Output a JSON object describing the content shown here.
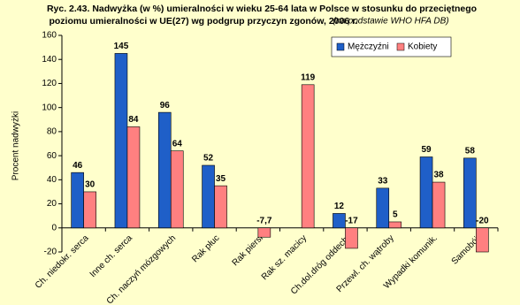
{
  "chart_data": {
    "type": "bar",
    "title_lines": [
      "Ryc. 2.43. Nadwyżka (w %) umieralności w wieku 25-64 lata w Polsce w stosunku do przeciętnego",
      "poziomu umieralności w UE(27) wg podgrup przyczyn zgonów, 2006 r."
    ],
    "source": "(na podstawie WHO HFA DB)",
    "y_label": "Procent nadwyżki",
    "categories": [
      "Ch. niedokr. serca",
      "Inne ch. serca",
      "Ch. naczyń mózgowych",
      "Rak płuc",
      "Rak piersi",
      "Rak sz. macicy",
      "Ch.dol.dróg oddech.",
      "Przewl. ch. wątroby",
      "Wypadki komunik.",
      "Samobój."
    ],
    "series": [
      {
        "name": "Mężczyźni",
        "color": "#1f5fc8",
        "values": [
          46,
          145,
          96,
          52,
          null,
          null,
          12,
          33,
          59,
          58
        ]
      },
      {
        "name": "Kobiety",
        "color": "#ff8080",
        "values": [
          30,
          84,
          64,
          35,
          -7.7,
          119,
          -17,
          5,
          38,
          -20
        ],
        "value_labels": [
          "30",
          "84",
          "64",
          "35",
          "-7,7",
          "119",
          "-17",
          "5",
          "38",
          "-20"
        ]
      }
    ],
    "ylim": [
      -20,
      160
    ],
    "yticks": [
      -20,
      0,
      20,
      40,
      60,
      80,
      100,
      120,
      140,
      160
    ],
    "legend": "top-right"
  }
}
